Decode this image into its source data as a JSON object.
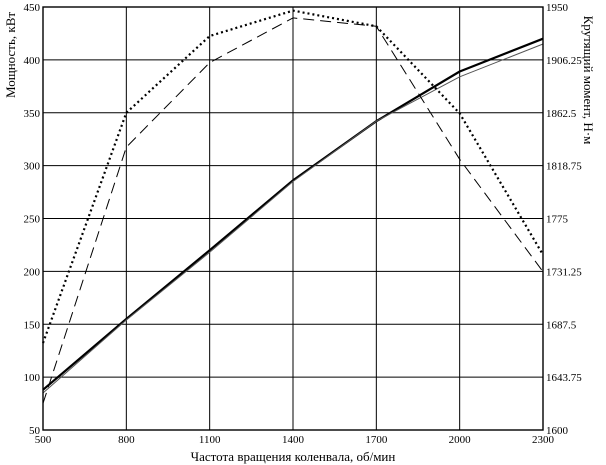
{
  "chart_data": {
    "type": "line",
    "xlabel": "Частота вращения коленвала, об/мин",
    "ylabel_left": "Мощность, кВт",
    "ylabel_right": "Крутящий момент, Н·м",
    "x_ticks": [
      "500",
      "800",
      "1100",
      "1400",
      "1700",
      "2000",
      "2300"
    ],
    "y_left_ticks": [
      "50",
      "100",
      "150",
      "200",
      "250",
      "300",
      "350",
      "400",
      "450"
    ],
    "y_right_ticks": [
      "1600",
      "1643.75",
      "1687.5",
      "1731.25",
      "1775",
      "1818.75",
      "1862.5",
      "1906.25",
      "1950"
    ],
    "xlim": [
      500,
      2300
    ],
    "ylim_left": [
      50,
      450
    ],
    "ylim_right": [
      1600,
      1950
    ],
    "grid": true,
    "series": [
      {
        "axis": "left",
        "style": "solid-thick",
        "color": "#000000",
        "x": [
          500,
          800,
          1100,
          1400,
          1700,
          2000,
          2300
        ],
        "values": [
          88,
          155,
          220,
          286,
          342,
          389,
          420
        ]
      },
      {
        "axis": "left",
        "style": "solid-thin",
        "color": "#555555",
        "x": [
          500,
          800,
          1100,
          1400,
          1700,
          2000,
          2300
        ],
        "values": [
          85,
          154,
          218,
          285,
          342,
          384,
          415
        ]
      },
      {
        "axis": "right",
        "style": "dotted",
        "color": "#000000",
        "x": [
          500,
          800,
          1100,
          1400,
          1700,
          2000,
          2300
        ],
        "values": [
          1672,
          1862.5,
          1926,
          1947,
          1934,
          1862,
          1745
        ]
      },
      {
        "axis": "right",
        "style": "dashed",
        "color": "#000000",
        "x": [
          500,
          800,
          1100,
          1400,
          1700,
          2000,
          2300
        ],
        "values": [
          1622,
          1834,
          1904,
          1941,
          1934,
          1824,
          1731
        ]
      }
    ]
  }
}
